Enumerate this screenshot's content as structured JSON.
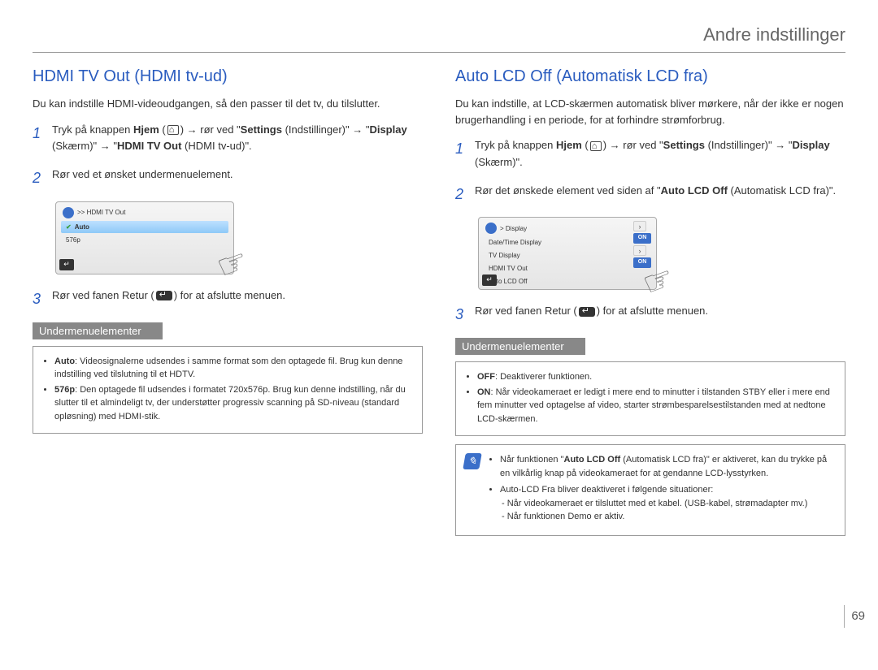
{
  "header": {
    "title": "Andre indstillinger",
    "page_number": "69"
  },
  "left": {
    "title": "HDMI TV Out (HDMI tv-ud)",
    "intro": "Du kan indstille HDMI-videoudgangen, så den passer til det tv, du tilslutter.",
    "step1_a": "Tryk på knappen ",
    "step1_b": "Hjem",
    "step1_c": " (",
    "step1_d": ") → rør ved \"",
    "step1_e": "Settings",
    "step1_f": " (Indstillinger)\" → \"",
    "step1_g": "Display",
    "step1_h": " (Skærm)\" → \"",
    "step1_i": "HDMI TV Out",
    "step1_j": " (HDMI tv-ud)\".",
    "step2": "Rør ved et ønsket undermenuelement.",
    "menu": {
      "header": ">> HDMI TV Out",
      "row1": "Auto",
      "row2": "576p"
    },
    "step3_a": "Rør ved fanen Retur (",
    "step3_b": ") for at afslutte menuen.",
    "sub_header": "Undermenuelementer",
    "sub_auto_b": "Auto",
    "sub_auto": ": Videosignalerne udsendes i samme format som den optagede fil. Brug kun denne indstilling ved tilslutning til et HDTV.",
    "sub_576_b": "576p",
    "sub_576": ": Den optagede fil udsendes i formatet 720x576p. Brug kun denne indstilling, når du slutter til et almindeligt tv, der understøtter progressiv scanning på SD-niveau (standard opløsning) med HDMI-stik."
  },
  "right": {
    "title": "Auto LCD Off (Automatisk LCD fra)",
    "intro": "Du kan indstille, at LCD-skærmen automatisk bliver mørkere, når der ikke er nogen brugerhandling i en periode, for at forhindre strømforbrug.",
    "step1_a": "Tryk på knappen ",
    "step1_b": "Hjem",
    "step1_c": " (",
    "step1_d": ") → rør ved \"",
    "step1_e": "Settings",
    "step1_f": " (Indstillinger)\" → \"",
    "step1_g": "Display",
    "step1_h": " (Skærm)\".",
    "step2_a": "Rør det ønskede element ved siden af \"",
    "step2_b": "Auto LCD Off",
    "step2_c": " (Automatisk LCD fra)\".",
    "menu": {
      "header": "> Display",
      "r1": "Date/Time Display",
      "r2": "TV Display",
      "r3": "HDMI TV Out",
      "r4": "Auto LCD Off",
      "on": "ON"
    },
    "step3_a": "Rør ved fanen Retur (",
    "step3_b": ") for at afslutte menuen.",
    "sub_header": "Undermenuelementer",
    "sub_off_b": "OFF",
    "sub_off": ": Deaktiverer funktionen.",
    "sub_on_b": "ON",
    "sub_on": ": Når videokameraet er ledigt i mere end to minutter i tilstanden STBY eller i mere end fem minutter ved optagelse af video, starter strømbesparelsestilstanden med at nedtone LCD-skærmen.",
    "note1_a": "Når funktionen \"",
    "note1_b": "Auto LCD Off",
    "note1_c": " (Automatisk LCD fra)\" er aktiveret, kan du trykke på en vilkårlig knap på videokameraet for at gendanne LCD-lysstyrken.",
    "note2": "Auto-LCD Fra bliver deaktiveret i følgende situationer:",
    "note2a": "- Når videokameraet er tilsluttet med et kabel. (USB-kabel, strømadapter mv.)",
    "note2b": "- Når funktionen Demo er aktiv."
  }
}
